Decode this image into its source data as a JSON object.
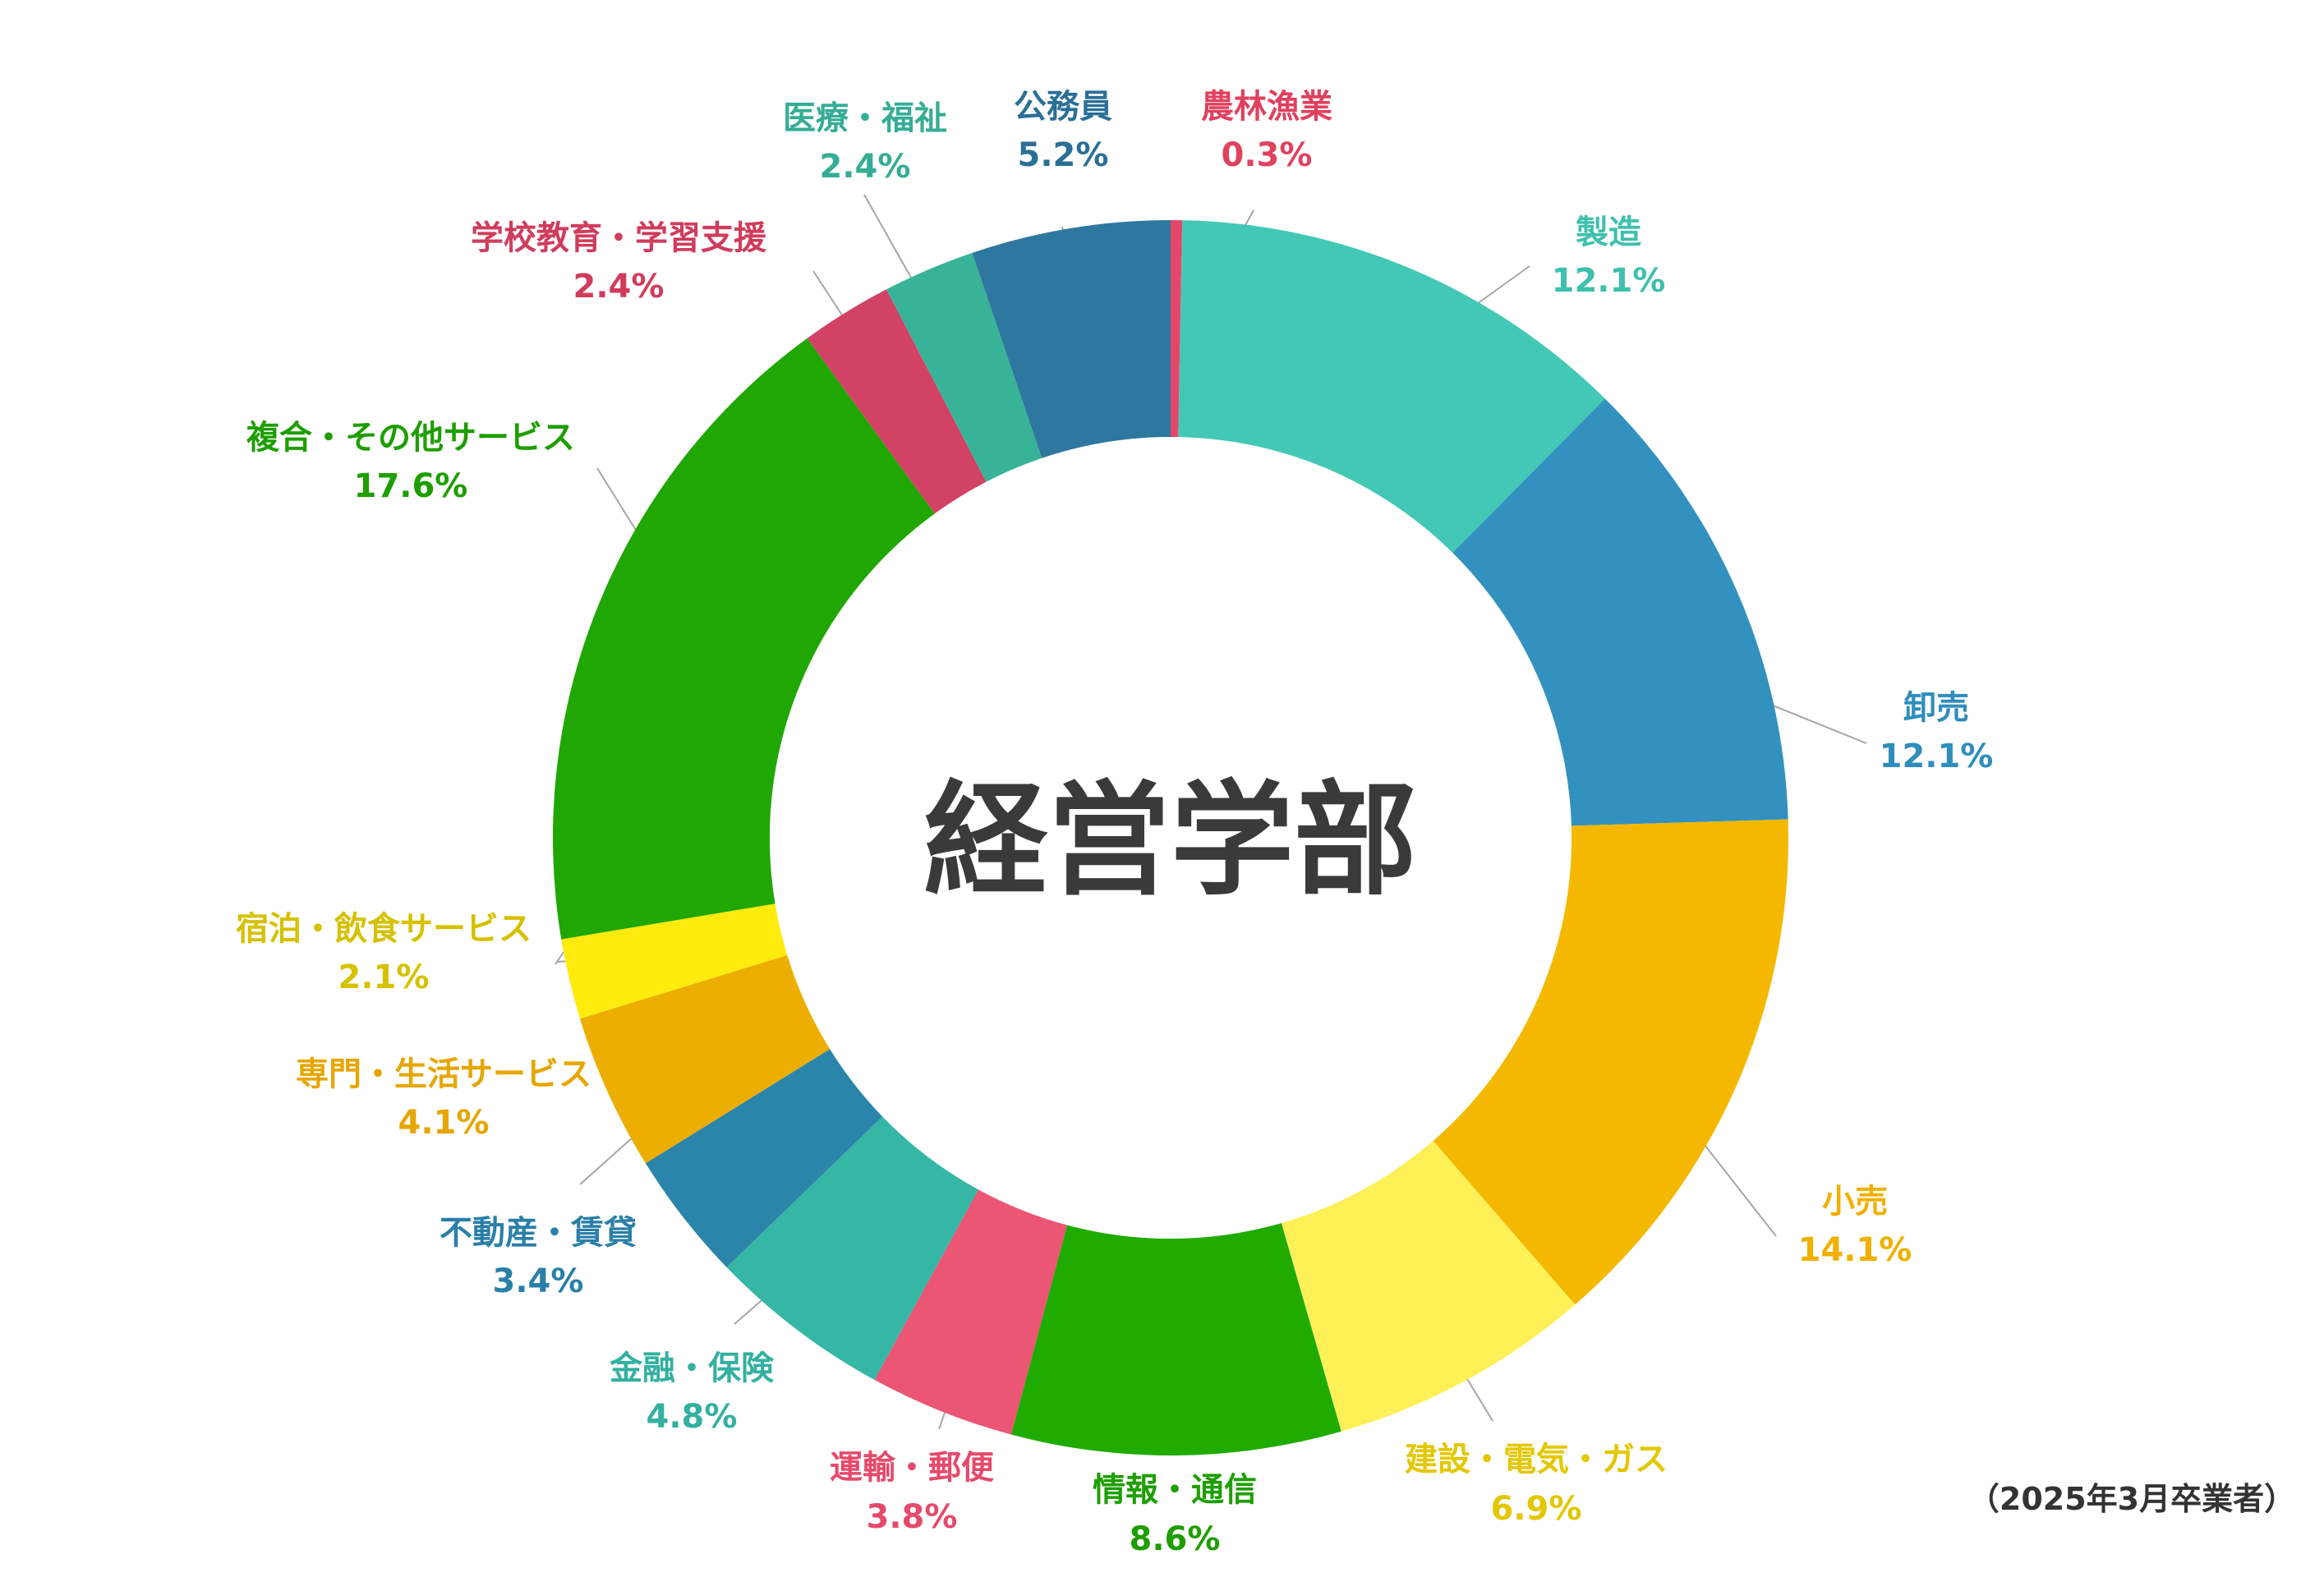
{
  "chart_data": {
    "type": "pie",
    "donut": true,
    "title": "経営学部",
    "note": "（2025年3月卒業者）",
    "legend": "none",
    "slices": [
      {
        "label": "農林漁業",
        "value": 0.3,
        "value_label": "0.3%",
        "color": "#e5476a",
        "label_color": "#e0415e"
      },
      {
        "label": "製造",
        "value": 12.1,
        "value_label": "12.1%",
        "color": "#44c8b6",
        "label_color": "#3fc0ad"
      },
      {
        "label": "卸売",
        "value": 12.1,
        "value_label": "12.1%",
        "color": "#3391bf",
        "label_color": "#2f8dbb"
      },
      {
        "label": "小売",
        "value": 14.1,
        "value_label": "14.1%",
        "color": "#f5b800",
        "label_color": "#f0b000"
      },
      {
        "label": "建設・電気・ガス",
        "value": 6.9,
        "value_label": "6.9%",
        "color": "#fef057",
        "label_color": "#e3c700"
      },
      {
        "label": "情報・通信",
        "value": 8.6,
        "value_label": "8.6%",
        "color": "#20ab00",
        "label_color": "#1e9e00"
      },
      {
        "label": "運輸・郵便",
        "value": 3.8,
        "value_label": "3.8%",
        "color": "#ea5674",
        "label_color": "#e54a6b"
      },
      {
        "label": "金融・保険",
        "value": 4.8,
        "value_label": "4.8%",
        "color": "#36b7a5",
        "label_color": "#33b0a0"
      },
      {
        "label": "不動産・賃貸",
        "value": 3.4,
        "value_label": "3.4%",
        "color": "#2b85aa",
        "label_color": "#2a7fa8"
      },
      {
        "label": "専門・生活サービス",
        "value": 4.1,
        "value_label": "4.1%",
        "color": "#ecae00",
        "label_color": "#e6a600"
      },
      {
        "label": "宿泊・飲食サービス",
        "value": 2.1,
        "value_label": "2.1%",
        "color": "#ffeb0d",
        "label_color": "#d6c100"
      },
      {
        "label": "複合・その他サービス",
        "value": 17.6,
        "value_label": "17.6%",
        "color": "#20a703",
        "label_color": "#1e9e00"
      },
      {
        "label": "学校教育・学習支援",
        "value": 2.4,
        "value_label": "2.4%",
        "color": "#d24264",
        "label_color": "#d03c5c"
      },
      {
        "label": "医療・福祉",
        "value": 2.4,
        "value_label": "2.4%",
        "color": "#39b398",
        "label_color": "#35ad95"
      },
      {
        "label": "公務員",
        "value": 5.2,
        "value_label": "5.2%",
        "color": "#2e779f",
        "label_color": "#2b6f96"
      }
    ]
  }
}
